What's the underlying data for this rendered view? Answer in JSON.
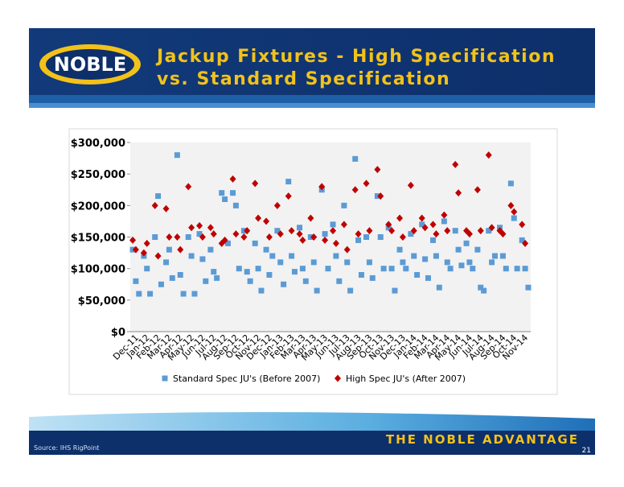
{
  "slide": {
    "logo": "NOBLE",
    "title_line1": "Jackup Fixtures - High Specification",
    "title_line2": "vs. Standard Specification",
    "tagline": "THE NOBLE ADVANTAGE",
    "source": "Source:   IHS RigPoint",
    "page": "21"
  },
  "chart_data": {
    "type": "scatter",
    "categories": [
      "Dec-11",
      "Jan-12",
      "Feb-12",
      "Mar-12",
      "Apr-12",
      "May-12",
      "Jun-12",
      "Jul-12",
      "Aug-12",
      "Sep-12",
      "Oct-12",
      "Nov-12",
      "Dec-12",
      "Jan-13",
      "Feb-13",
      "Mar-13",
      "Apr-13",
      "May-13",
      "Jun-13",
      "Jul-13",
      "Aug-13",
      "Sep-13",
      "Oct-13",
      "Nov-13",
      "Dec-13",
      "Jan-14",
      "Feb-14",
      "Mar-14",
      "Apr-14",
      "May-14",
      "Jun-14",
      "Jul-14",
      "Aug-14",
      "Sep-14",
      "Oct-14",
      "Nov-14"
    ],
    "ylim": [
      0,
      300000
    ],
    "yticks": [
      {
        "value": 0,
        "label": "$0"
      },
      {
        "value": 50000,
        "label": "$50,000"
      },
      {
        "value": 100000,
        "label": "$100,000"
      },
      {
        "value": 150000,
        "label": "$150,000"
      },
      {
        "value": 200000,
        "label": "$200,000"
      },
      {
        "value": 250000,
        "label": "$250,000"
      },
      {
        "value": 300000,
        "label": "$300,000"
      }
    ],
    "series": [
      {
        "name": "Standard Spec JU's (Before 2007)",
        "color": "#5b9bd5",
        "marker": "square",
        "x": [
          "Dec-11",
          "Dec-11",
          "Dec-11",
          "Jan-12",
          "Jan-12",
          "Jan-12",
          "Feb-12",
          "Feb-12",
          "Feb-12",
          "Mar-12",
          "Mar-12",
          "Mar-12",
          "Apr-12",
          "Apr-12",
          "Apr-12",
          "May-12",
          "May-12",
          "May-12",
          "Jun-12",
          "Jun-12",
          "Jun-12",
          "Jul-12",
          "Jul-12",
          "Jul-12",
          "Aug-12",
          "Aug-12",
          "Aug-12",
          "Sep-12",
          "Sep-12",
          "Sep-12",
          "Oct-12",
          "Oct-12",
          "Oct-12",
          "Nov-12",
          "Nov-12",
          "Nov-12",
          "Dec-12",
          "Dec-12",
          "Dec-12",
          "Jan-13",
          "Jan-13",
          "Jan-13",
          "Feb-13",
          "Feb-13",
          "Feb-13",
          "Mar-13",
          "Mar-13",
          "Mar-13",
          "Apr-13",
          "Apr-13",
          "Apr-13",
          "May-13",
          "May-13",
          "May-13",
          "Jun-13",
          "Jun-13",
          "Jun-13",
          "Jul-13",
          "Jul-13",
          "Jul-13",
          "Aug-13",
          "Aug-13",
          "Aug-13",
          "Sep-13",
          "Sep-13",
          "Sep-13",
          "Oct-13",
          "Oct-13",
          "Oct-13",
          "Nov-13",
          "Nov-13",
          "Nov-13",
          "Dec-13",
          "Dec-13",
          "Dec-13",
          "Jan-14",
          "Jan-14",
          "Jan-14",
          "Feb-14",
          "Feb-14",
          "Feb-14",
          "Mar-14",
          "Mar-14",
          "Mar-14",
          "Apr-14",
          "Apr-14",
          "Apr-14",
          "May-14",
          "May-14",
          "May-14",
          "Jun-14",
          "Jun-14",
          "Jun-14",
          "Jul-14",
          "Jul-14",
          "Jul-14",
          "Aug-14",
          "Aug-14",
          "Aug-14",
          "Sep-14",
          "Sep-14",
          "Sep-14",
          "Oct-14",
          "Oct-14",
          "Oct-14",
          "Nov-14",
          "Nov-14",
          "Nov-14"
        ],
        "values": [
          130000,
          80000,
          60000,
          120000,
          100000,
          60000,
          150000,
          215000,
          75000,
          110000,
          130000,
          85000,
          280000,
          90000,
          60000,
          150000,
          120000,
          60000,
          155000,
          115000,
          80000,
          130000,
          95000,
          85000,
          220000,
          210000,
          140000,
          220000,
          200000,
          100000,
          160000,
          95000,
          80000,
          140000,
          100000,
          65000,
          130000,
          90000,
          120000,
          160000,
          110000,
          75000,
          238000,
          120000,
          95000,
          165000,
          100000,
          80000,
          150000,
          110000,
          65000,
          225000,
          155000,
          100000,
          170000,
          120000,
          80000,
          200000,
          110000,
          65000,
          274000,
          145000,
          90000,
          150000,
          110000,
          85000,
          215000,
          150000,
          100000,
          165000,
          100000,
          65000,
          130000,
          110000,
          100000,
          155000,
          120000,
          90000,
          170000,
          115000,
          85000,
          145000,
          120000,
          70000,
          175000,
          110000,
          100000,
          160000,
          130000,
          105000,
          140000,
          110000,
          100000,
          130000,
          70000,
          65000,
          160000,
          110000,
          120000,
          165000,
          120000,
          100000,
          235000,
          180000,
          100000,
          145000,
          100000,
          70000
        ]
      },
      {
        "name": "High Spec JU's (After 2007)",
        "color": "#c00000",
        "marker": "diamond",
        "x": [
          "Dec-11",
          "Dec-11",
          "Jan-12",
          "Jan-12",
          "Feb-12",
          "Feb-12",
          "Mar-12",
          "Mar-12",
          "Apr-12",
          "Apr-12",
          "May-12",
          "May-12",
          "Jun-12",
          "Jun-12",
          "Jul-12",
          "Jul-12",
          "Aug-12",
          "Aug-12",
          "Sep-12",
          "Sep-12",
          "Oct-12",
          "Oct-12",
          "Nov-12",
          "Nov-12",
          "Dec-12",
          "Dec-12",
          "Jan-13",
          "Jan-13",
          "Feb-13",
          "Feb-13",
          "Mar-13",
          "Mar-13",
          "Apr-13",
          "Apr-13",
          "May-13",
          "May-13",
          "Jun-13",
          "Jun-13",
          "Jul-13",
          "Jul-13",
          "Aug-13",
          "Aug-13",
          "Sep-13",
          "Sep-13",
          "Oct-13",
          "Oct-13",
          "Nov-13",
          "Nov-13",
          "Dec-13",
          "Dec-13",
          "Jan-14",
          "Jan-14",
          "Feb-14",
          "Feb-14",
          "Mar-14",
          "Mar-14",
          "Apr-14",
          "Apr-14",
          "May-14",
          "May-14",
          "Jun-14",
          "Jun-14",
          "Jul-14",
          "Jul-14",
          "Aug-14",
          "Aug-14",
          "Sep-14",
          "Sep-14",
          "Oct-14",
          "Oct-14",
          "Nov-14",
          "Nov-14"
        ],
        "values": [
          145000,
          130000,
          125000,
          140000,
          200000,
          120000,
          195000,
          150000,
          150000,
          130000,
          230000,
          165000,
          168000,
          150000,
          165000,
          155000,
          140000,
          145000,
          242000,
          155000,
          150000,
          160000,
          235000,
          180000,
          175000,
          150000,
          200000,
          155000,
          215000,
          160000,
          155000,
          145000,
          180000,
          150000,
          230000,
          145000,
          160000,
          140000,
          170000,
          130000,
          225000,
          155000,
          235000,
          160000,
          257000,
          215000,
          170000,
          160000,
          180000,
          150000,
          232000,
          160000,
          180000,
          165000,
          170000,
          155000,
          185000,
          160000,
          265000,
          220000,
          160000,
          155000,
          225000,
          160000,
          280000,
          165000,
          160000,
          155000,
          200000,
          190000,
          170000,
          140000
        ]
      }
    ]
  }
}
